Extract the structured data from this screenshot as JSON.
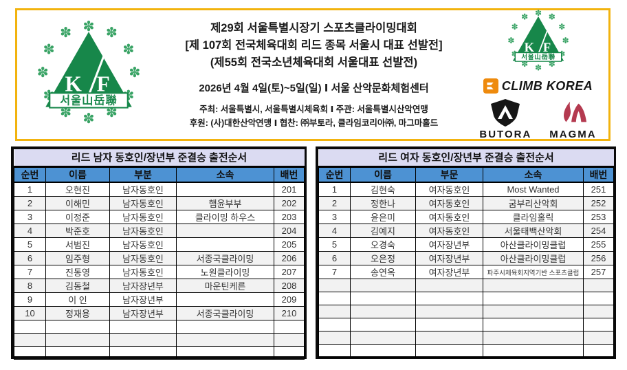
{
  "colors": {
    "accent_gold": "#F2B30E",
    "table_header_blue": "#4D92D3",
    "table_title_lavender": "#DBDBF2",
    "row_alt_gray": "#F2F2F2",
    "logo_green": "#17874A",
    "magma_red": "#B43A50",
    "climb_orange": "#EE8A0D"
  },
  "header": {
    "title_lines": [
      "제29회 서울특별시장기 스포츠클라이밍대회",
      "[제 107회 전국체육대회 리드 종목 서울시 대표 선발전]",
      "(제55회 전국소년체육대회 서울대표 선발전)"
    ],
    "date_line": "2026년 4월 4일(토)~5일(일) Ⅰ 서울 산악문화체험센터",
    "host_line": "주최: 서울특별시, 서울특별시체육회  Ⅰ  주관: 서울특별시산악연맹",
    "sponsor_line": "후원: (사)대한산악연맹  Ⅰ  협찬: ㈜부토라, 클라임코리아㈜, 마그마홀드",
    "left_logo": {
      "letter_k": "K",
      "letter_f": "F",
      "band_text": "서울山岳聯"
    },
    "right_logos": {
      "kf_letter_k": "K",
      "kf_letter_f": "F",
      "kf_band_text": "서울山岳聯",
      "climb_korea_label": "CLIMB KOREA",
      "butora_label": "BUTORA",
      "magma_label": "MAGMA"
    }
  },
  "tables": {
    "left": {
      "title": "리드 남자 동호인/장년부 준결승 출전순서",
      "headers": [
        "순번",
        "이름",
        "부분",
        "소속",
        "배번"
      ],
      "rows": [
        [
          "1",
          "오현진",
          "남자동호인",
          "",
          "201"
        ],
        [
          "2",
          "이해민",
          "남자동호인",
          "햄윤부부",
          "202"
        ],
        [
          "3",
          "이정준",
          "남자동호인",
          "클라이밍 하우스",
          "203"
        ],
        [
          "4",
          "박준호",
          "남자동호인",
          "",
          "204"
        ],
        [
          "5",
          "서범진",
          "남자동호인",
          "",
          "205"
        ],
        [
          "6",
          "임주형",
          "남자동호인",
          "서종국클라이밍",
          "206"
        ],
        [
          "7",
          "진동영",
          "남자동호인",
          "노원클라이밍",
          "207"
        ],
        [
          "8",
          "김동철",
          "남자장년부",
          "마운틴케른",
          "208"
        ],
        [
          "9",
          "이 인",
          "남자장년부",
          "",
          "209"
        ],
        [
          "10",
          "정재용",
          "남자장년부",
          "서종국클라이밍",
          "210"
        ]
      ],
      "empty_row_count": 3
    },
    "right": {
      "title": "리드 여자 동호인/장년부 준결승 출전순서",
      "headers": [
        "순번",
        "이름",
        "부문",
        "소속",
        "배번"
      ],
      "rows": [
        [
          "1",
          "김현숙",
          "여자동호인",
          "Most Wanted",
          "251"
        ],
        [
          "2",
          "정한나",
          "여자동호인",
          "굼부리산악회",
          "252"
        ],
        [
          "3",
          "윤은미",
          "여자동호인",
          "클라임홀릭",
          "253"
        ],
        [
          "4",
          "김예지",
          "여자동호인",
          "서울태백산악회",
          "254"
        ],
        [
          "5",
          "오경숙",
          "여자장년부",
          "아산클라이밍클럽",
          "255"
        ],
        [
          "6",
          "오은정",
          "여자장년부",
          "아산클라이밍클럽",
          "256"
        ],
        [
          "7",
          "송연옥",
          "여자장년부",
          "파주시체육회지역기반 스포츠클럽",
          "257"
        ]
      ],
      "empty_row_count": 6
    }
  }
}
